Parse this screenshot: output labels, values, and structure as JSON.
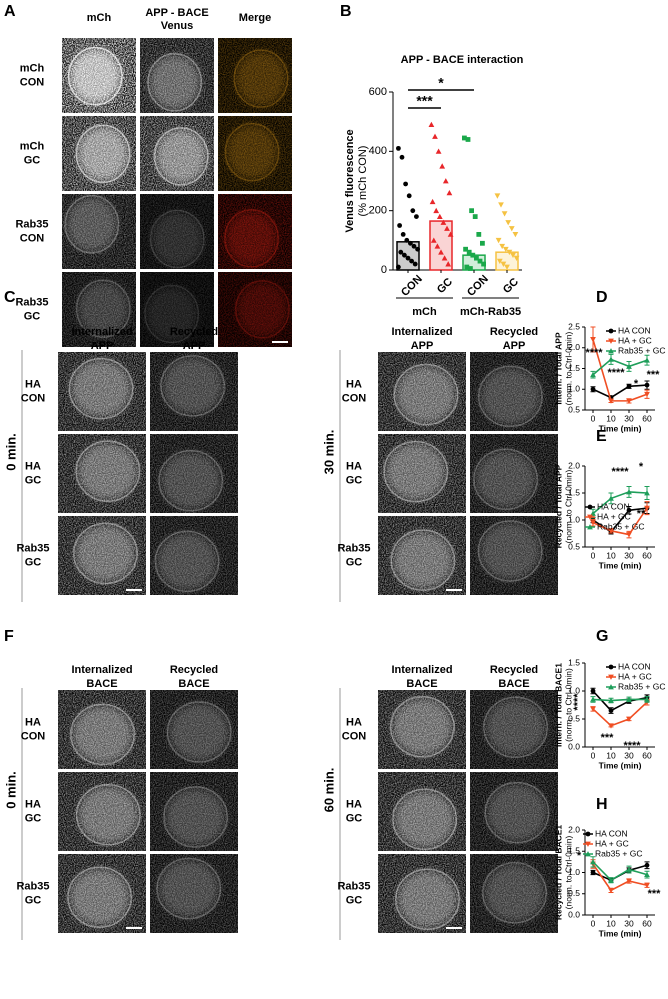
{
  "panel_labels": [
    "A",
    "B",
    "C",
    "D",
    "E",
    "F",
    "G",
    "H"
  ],
  "panel_a": {
    "columns": [
      [
        "mCh"
      ],
      [
        "APP - BACE",
        "Venus"
      ],
      [
        "Merge"
      ]
    ],
    "column_colors": [
      "#e8262a",
      "#1aa84a",
      "#000000"
    ],
    "rows": [
      [
        "mCh",
        "CON"
      ],
      [
        "mCh",
        "GC"
      ],
      [
        "Rab35",
        "CON"
      ],
      [
        "Rab35",
        "GC"
      ]
    ]
  },
  "panel_b": {
    "type": "bar",
    "title": "APP - BACE interaction",
    "ylabel": [
      "Venus fluorescence",
      "(% mCh CON)"
    ],
    "categories": [
      "CON",
      "GC",
      "CON",
      "GC"
    ],
    "groups": [
      "mCh",
      "mCh-Rab35"
    ],
    "values": [
      95,
      165,
      50,
      60
    ],
    "colors": [
      "#000000",
      "#e8262a",
      "#1aa84a",
      "#f5c242"
    ],
    "markers": [
      "circle",
      "triangle",
      "square",
      "triangle-down"
    ],
    "points": [
      [
        410,
        380,
        290,
        250,
        200,
        180,
        150,
        120,
        100,
        90,
        80,
        70,
        60,
        50,
        40,
        30,
        20,
        10
      ],
      [
        490,
        450,
        400,
        350,
        300,
        260,
        230,
        200,
        180,
        160,
        140,
        120,
        100,
        80,
        60,
        40,
        20
      ],
      [
        445,
        440,
        200,
        180,
        120,
        90,
        70,
        60,
        50,
        40,
        30,
        20,
        10,
        5
      ],
      [
        250,
        220,
        190,
        160,
        140,
        120,
        100,
        80,
        70,
        60,
        50,
        40,
        30,
        20,
        10
      ]
    ],
    "ylim": [
      0,
      600
    ],
    "yticks": [
      0,
      200,
      400,
      600
    ],
    "brackets": [
      "***",
      "*"
    ]
  },
  "panel_c": {
    "columns": [
      [
        "Internalized",
        "APP"
      ],
      [
        "Recycled",
        "APP"
      ]
    ],
    "timepoints": [
      "0 min.",
      "30 min."
    ],
    "rows": [
      [
        "HA",
        "CON"
      ],
      [
        "HA",
        "GC"
      ],
      [
        "Rab35",
        "GC"
      ]
    ]
  },
  "panel_f": {
    "columns": [
      [
        "Internalized",
        "BACE"
      ],
      [
        "Recycled",
        "BACE"
      ]
    ],
    "timepoints": [
      "0 min.",
      "60 min."
    ],
    "rows": [
      [
        "HA",
        "CON"
      ],
      [
        "HA",
        "GC"
      ],
      [
        "Rab35",
        "GC"
      ]
    ]
  },
  "panel_d": {
    "type": "line",
    "ylabel": [
      "Intern. / Total APP",
      "(norm. to Ctrl-0min)"
    ],
    "xlabel": "Time (min)",
    "categories": [
      0,
      10,
      30,
      60
    ],
    "ylim": [
      0.5,
      2.5
    ],
    "yticks": [
      0.5,
      {
        "value": 1.0,
        "label": "1.0"
      },
      1.5,
      {
        "value": 2.0,
        "label": "2.0"
      },
      2.5
    ],
    "legend": "upper right",
    "series": [
      {
        "name": "HA CON",
        "color": "#000000",
        "marker": "circle",
        "values": [
          1.0,
          0.8,
          1.07,
          1.1
        ],
        "errors": [
          0.06,
          0.04,
          0.05,
          0.1
        ]
      },
      {
        "name": "HA + GC",
        "color": "#f04e23",
        "marker": "triangle-down",
        "values": [
          2.2,
          0.72,
          0.72,
          0.88
        ],
        "errors": [
          0.3,
          0.04,
          0.05,
          0.1
        ]
      },
      {
        "name": "Rab35 + GC",
        "color": "#1e9e5a",
        "marker": "triangle",
        "values": [
          1.35,
          1.72,
          1.55,
          1.7
        ],
        "errors": [
          0.08,
          0.12,
          0.12,
          0.12
        ]
      }
    ],
    "annotations": [
      "****",
      "****",
      "*",
      "***"
    ]
  },
  "panel_e": {
    "type": "line",
    "ylabel": [
      "Recycled / Total APP",
      "(norm. to Ctrl-0min)"
    ],
    "xlabel": "Time (min)",
    "categories": [
      0,
      10,
      30,
      60
    ],
    "ylim": [
      0.5,
      2.0
    ],
    "yticks": [
      0.5,
      {
        "value": 1.0,
        "label": "1.0"
      },
      1.5,
      {
        "value": 2.0,
        "label": "2.0"
      }
    ],
    "legend": "lower left",
    "series": [
      {
        "name": "HA CON",
        "color": "#000000",
        "marker": "circle",
        "values": [
          1.0,
          0.78,
          1.18,
          1.22
        ],
        "errors": [
          0.05,
          0.04,
          0.07,
          0.1
        ]
      },
      {
        "name": "HA + GC",
        "color": "#f04e23",
        "marker": "triangle-down",
        "values": [
          0.95,
          0.8,
          0.73,
          1.22
        ],
        "errors": [
          0.06,
          0.04,
          0.06,
          0.12
        ]
      },
      {
        "name": "Rab35 + GC",
        "color": "#1e9e5a",
        "marker": "triangle",
        "values": [
          1.12,
          1.4,
          1.52,
          1.5
        ],
        "errors": [
          0.08,
          0.1,
          0.1,
          0.12
        ]
      }
    ],
    "annotations": [
      "****",
      "*",
      "**"
    ]
  },
  "panel_g": {
    "type": "line",
    "ylabel": [
      "Intern. / Total BACE1",
      "(norm. to Ctrl-0min)"
    ],
    "xlabel": "Time (min)",
    "categories": [
      0,
      10,
      30,
      60
    ],
    "ylim": [
      0.0,
      1.5
    ],
    "yticks": [
      {
        "value": 0.0,
        "label": "0.0"
      },
      0.5,
      {
        "value": 1.0,
        "label": "1.0"
      },
      1.5
    ],
    "legend": "upper right",
    "series": [
      {
        "name": "HA CON",
        "color": "#000000",
        "marker": "circle",
        "values": [
          1.0,
          0.65,
          0.82,
          0.88
        ],
        "errors": [
          0.05,
          0.05,
          0.04,
          0.05
        ]
      },
      {
        "name": "HA + GC",
        "color": "#f04e23",
        "marker": "triangle-down",
        "values": [
          0.68,
          0.38,
          0.5,
          0.8
        ],
        "errors": [
          0.04,
          0.02,
          0.03,
          0.05
        ]
      },
      {
        "name": "Rab35 + GC",
        "color": "#1e9e5a",
        "marker": "triangle",
        "values": [
          0.85,
          0.83,
          0.85,
          0.85
        ],
        "errors": [
          0.05,
          0.04,
          0.04,
          0.05
        ]
      }
    ],
    "annotations": [
      "****",
      "***",
      "****"
    ]
  },
  "panel_h": {
    "type": "line",
    "ylabel": [
      "Recycled / Total BACE1",
      "(norm. to Ctrl-0min)"
    ],
    "xlabel": "Time (min)",
    "categories": [
      0,
      10,
      30,
      60
    ],
    "ylim": [
      0.0,
      2.0
    ],
    "yticks": [
      {
        "value": 0.0,
        "label": "0.0"
      },
      0.5,
      {
        "value": 1.0,
        "label": "1.0"
      },
      1.5,
      {
        "value": 2.0,
        "label": "2.0"
      }
    ],
    "legend": "upper left",
    "series": [
      {
        "name": "HA CON",
        "color": "#000000",
        "marker": "circle",
        "values": [
          1.0,
          0.82,
          1.05,
          1.17
        ],
        "errors": [
          0.05,
          0.05,
          0.06,
          0.08
        ]
      },
      {
        "name": "HA + GC",
        "color": "#f04e23",
        "marker": "triangle-down",
        "values": [
          1.2,
          0.58,
          0.8,
          0.7
        ],
        "errors": [
          0.1,
          0.05,
          0.05,
          0.05
        ]
      },
      {
        "name": "Rab35 + GC",
        "color": "#1e9e5a",
        "marker": "triangle",
        "values": [
          1.25,
          0.82,
          1.07,
          0.95
        ],
        "errors": [
          0.12,
          0.06,
          0.08,
          0.08
        ]
      }
    ],
    "annotations": [
      "*",
      "***"
    ]
  }
}
